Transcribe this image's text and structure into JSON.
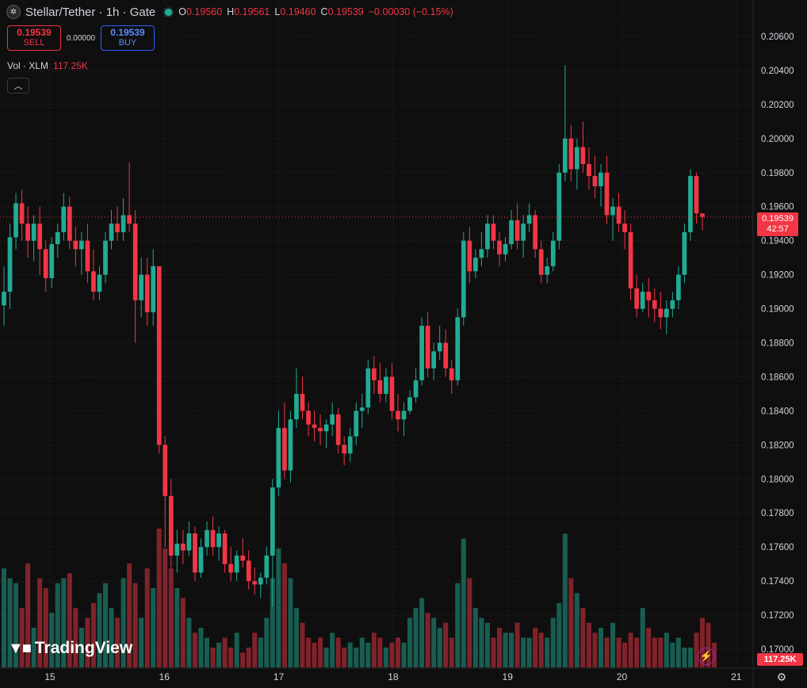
{
  "header": {
    "title": "Stellar/Tether · 1h · Gate",
    "ohlc": [
      {
        "k": "O",
        "v": "0.19560"
      },
      {
        "k": "H",
        "v": "0.19561"
      },
      {
        "k": "L",
        "v": "0.19460"
      },
      {
        "k": "C",
        "v": "0.19539"
      },
      {
        "k": "",
        "v": "−0.00030 (−0.15%)"
      }
    ]
  },
  "trade": {
    "sell_price": "0.19539",
    "sell_label": "SELL",
    "spread": "0.00000",
    "buy_price": "0.19539",
    "buy_label": "BUY"
  },
  "volume_legend": {
    "label": "Vol · XLM",
    "value": "117.25K"
  },
  "brand": "TradingView",
  "price_tag": {
    "price": "0.19539",
    "countdown": "42:57"
  },
  "volume_tag": "117.25K",
  "colors": {
    "up": "#22ab94",
    "down": "#f23645",
    "grid": "#232323",
    "axis_text": "#d1d4dc"
  },
  "icons": [
    "sym-icon",
    "collapse-icon",
    "lightning-icon",
    "settings-icon"
  ],
  "chart_data": {
    "type": "candlestick",
    "title": "Stellar/Tether · 1h · Gate",
    "x_ticks": [
      "15",
      "16",
      "17",
      "18",
      "19",
      "20",
      "21"
    ],
    "y_ticks": [
      "0.20600",
      "0.20400",
      "0.20200",
      "0.20000",
      "0.19800",
      "0.19600",
      "0.19400",
      "0.19200",
      "0.19000",
      "0.18800",
      "0.18600",
      "0.18400",
      "0.18200",
      "0.18000",
      "0.17800",
      "0.17600",
      "0.17400",
      "0.17200",
      "0.17000"
    ],
    "ylim": [
      0.1694,
      0.2066
    ],
    "xlim_days": [
      14.58,
      21.0
    ],
    "last_price": 0.19539,
    "grid": true,
    "ohlc_series": [
      [
        0.1902,
        0.1925,
        0.189,
        0.191
      ],
      [
        0.191,
        0.195,
        0.19,
        0.1942
      ],
      [
        0.1942,
        0.1968,
        0.1935,
        0.1962
      ],
      [
        0.1962,
        0.197,
        0.194,
        0.195
      ],
      [
        0.195,
        0.196,
        0.193,
        0.194
      ],
      [
        0.194,
        0.1955,
        0.1928,
        0.195
      ],
      [
        0.195,
        0.196,
        0.192,
        0.1935
      ],
      [
        0.1935,
        0.194,
        0.191,
        0.1918
      ],
      [
        0.1918,
        0.1942,
        0.1912,
        0.1938
      ],
      [
        0.1938,
        0.195,
        0.193,
        0.1945
      ],
      [
        0.1945,
        0.1968,
        0.194,
        0.196
      ],
      [
        0.196,
        0.1966,
        0.1935,
        0.194
      ],
      [
        0.194,
        0.1948,
        0.1925,
        0.1935
      ],
      [
        0.1935,
        0.1945,
        0.192,
        0.194
      ],
      [
        0.194,
        0.195,
        0.1915,
        0.1922
      ],
      [
        0.1922,
        0.1935,
        0.1905,
        0.191
      ],
      [
        0.191,
        0.1925,
        0.1905,
        0.192
      ],
      [
        0.192,
        0.1945,
        0.1915,
        0.194
      ],
      [
        0.194,
        0.1958,
        0.1935,
        0.195
      ],
      [
        0.195,
        0.196,
        0.194,
        0.1945
      ],
      [
        0.1945,
        0.1965,
        0.194,
        0.1955
      ],
      [
        0.1955,
        0.1986,
        0.1945,
        0.195
      ],
      [
        0.195,
        0.1958,
        0.188,
        0.1905
      ],
      [
        0.1905,
        0.193,
        0.1895,
        0.192
      ],
      [
        0.192,
        0.193,
        0.189,
        0.1898
      ],
      [
        0.1898,
        0.1935,
        0.189,
        0.1925
      ],
      [
        0.1925,
        0.1925,
        0.1815,
        0.182
      ],
      [
        0.182,
        0.1825,
        0.176,
        0.179
      ],
      [
        0.179,
        0.18,
        0.1748,
        0.1755
      ],
      [
        0.1755,
        0.177,
        0.1745,
        0.1762
      ],
      [
        0.1762,
        0.177,
        0.175,
        0.1758
      ],
      [
        0.1758,
        0.1775,
        0.1755,
        0.1768
      ],
      [
        0.1768,
        0.1772,
        0.174,
        0.1745
      ],
      [
        0.1745,
        0.1765,
        0.1742,
        0.176
      ],
      [
        0.176,
        0.1775,
        0.1755,
        0.177
      ],
      [
        0.177,
        0.1778,
        0.1755,
        0.176
      ],
      [
        0.176,
        0.1772,
        0.1752,
        0.1768
      ],
      [
        0.1768,
        0.177,
        0.1745,
        0.175
      ],
      [
        0.175,
        0.176,
        0.174,
        0.1745
      ],
      [
        0.1745,
        0.1758,
        0.174,
        0.1755
      ],
      [
        0.1755,
        0.1765,
        0.1748,
        0.1752
      ],
      [
        0.1752,
        0.1758,
        0.1735,
        0.174
      ],
      [
        0.174,
        0.1748,
        0.1732,
        0.1738
      ],
      [
        0.1738,
        0.1745,
        0.173,
        0.1742
      ],
      [
        0.1742,
        0.176,
        0.1738,
        0.1755
      ],
      [
        0.1755,
        0.18,
        0.1725,
        0.1795
      ],
      [
        0.1795,
        0.184,
        0.179,
        0.183
      ],
      [
        0.183,
        0.1845,
        0.18,
        0.1805
      ],
      [
        0.1805,
        0.184,
        0.1798,
        0.1835
      ],
      [
        0.1835,
        0.1865,
        0.183,
        0.185
      ],
      [
        0.185,
        0.186,
        0.1835,
        0.184
      ],
      [
        0.184,
        0.1845,
        0.1825,
        0.1832
      ],
      [
        0.1832,
        0.184,
        0.1822,
        0.183
      ],
      [
        0.183,
        0.1838,
        0.182,
        0.1828
      ],
      [
        0.1828,
        0.1835,
        0.1818,
        0.1832
      ],
      [
        0.1832,
        0.1845,
        0.1825,
        0.1838
      ],
      [
        0.1838,
        0.1842,
        0.1815,
        0.182
      ],
      [
        0.182,
        0.1825,
        0.1808,
        0.1815
      ],
      [
        0.1815,
        0.183,
        0.181,
        0.1825
      ],
      [
        0.1825,
        0.1845,
        0.182,
        0.184
      ],
      [
        0.184,
        0.185,
        0.183,
        0.1842
      ],
      [
        0.1842,
        0.187,
        0.1838,
        0.1865
      ],
      [
        0.1865,
        0.1872,
        0.185,
        0.1858
      ],
      [
        0.1858,
        0.1868,
        0.1845,
        0.185
      ],
      [
        0.185,
        0.1865,
        0.1845,
        0.186
      ],
      [
        0.186,
        0.1868,
        0.1835,
        0.184
      ],
      [
        0.184,
        0.185,
        0.1828,
        0.1835
      ],
      [
        0.1835,
        0.1845,
        0.1825,
        0.184
      ],
      [
        0.184,
        0.1852,
        0.1838,
        0.1848
      ],
      [
        0.1848,
        0.1865,
        0.1845,
        0.1858
      ],
      [
        0.1858,
        0.1895,
        0.1855,
        0.189
      ],
      [
        0.189,
        0.1898,
        0.186,
        0.1865
      ],
      [
        0.1865,
        0.188,
        0.1858,
        0.1875
      ],
      [
        0.1875,
        0.189,
        0.187,
        0.188
      ],
      [
        0.188,
        0.1888,
        0.186,
        0.1865
      ],
      [
        0.1865,
        0.187,
        0.185,
        0.1858
      ],
      [
        0.1858,
        0.19,
        0.1855,
        0.1895
      ],
      [
        0.1895,
        0.1945,
        0.189,
        0.194
      ],
      [
        0.194,
        0.1948,
        0.1915,
        0.1922
      ],
      [
        0.1922,
        0.1935,
        0.1918,
        0.193
      ],
      [
        0.193,
        0.1945,
        0.1925,
        0.1935
      ],
      [
        0.1935,
        0.1955,
        0.193,
        0.195
      ],
      [
        0.195,
        0.1955,
        0.1935,
        0.194
      ],
      [
        0.194,
        0.1945,
        0.1925,
        0.1932
      ],
      [
        0.1932,
        0.1942,
        0.1928,
        0.1938
      ],
      [
        0.1938,
        0.1958,
        0.1935,
        0.1952
      ],
      [
        0.1952,
        0.1962,
        0.1935,
        0.194
      ],
      [
        0.194,
        0.1955,
        0.193,
        0.195
      ],
      [
        0.195,
        0.1962,
        0.1945,
        0.1955
      ],
      [
        0.1955,
        0.1958,
        0.193,
        0.1935
      ],
      [
        0.1935,
        0.194,
        0.1915,
        0.192
      ],
      [
        0.192,
        0.193,
        0.1915,
        0.1925
      ],
      [
        0.1925,
        0.1945,
        0.1922,
        0.194
      ],
      [
        0.194,
        0.1985,
        0.1935,
        0.198
      ],
      [
        0.198,
        0.2043,
        0.1975,
        0.2
      ],
      [
        0.2,
        0.2008,
        0.1975,
        0.1982
      ],
      [
        0.1982,
        0.2,
        0.197,
        0.1995
      ],
      [
        0.1995,
        0.201,
        0.198,
        0.1985
      ],
      [
        0.1985,
        0.1995,
        0.197,
        0.1978
      ],
      [
        0.1978,
        0.199,
        0.1965,
        0.1972
      ],
      [
        0.1972,
        0.1985,
        0.196,
        0.198
      ],
      [
        0.198,
        0.199,
        0.195,
        0.1955
      ],
      [
        0.1955,
        0.1965,
        0.194,
        0.196
      ],
      [
        0.196,
        0.1968,
        0.1945,
        0.195
      ],
      [
        0.195,
        0.1958,
        0.1935,
        0.1945
      ],
      [
        0.1945,
        0.195,
        0.1905,
        0.1912
      ],
      [
        0.1912,
        0.192,
        0.1895,
        0.19
      ],
      [
        0.19,
        0.1915,
        0.1898,
        0.191
      ],
      [
        0.191,
        0.1918,
        0.1895,
        0.1905
      ],
      [
        0.1905,
        0.1912,
        0.1892,
        0.19
      ],
      [
        0.19,
        0.191,
        0.1888,
        0.1895
      ],
      [
        0.1895,
        0.1905,
        0.1885,
        0.19
      ],
      [
        0.19,
        0.191,
        0.1895,
        0.1905
      ],
      [
        0.1905,
        0.1925,
        0.19,
        0.192
      ],
      [
        0.192,
        0.195,
        0.1915,
        0.1945
      ],
      [
        0.1945,
        0.1982,
        0.194,
        0.1978
      ],
      [
        0.1978,
        0.198,
        0.195,
        0.1956
      ],
      [
        0.1956,
        0.1956,
        0.1946,
        0.1954
      ]
    ],
    "volume_series": [
      1,
      0.9,
      0.85,
      0.6,
      1.05,
      0.4,
      0.9,
      0.8,
      0.55,
      0.85,
      0.9,
      0.95,
      0.6,
      0.4,
      0.5,
      0.65,
      0.75,
      0.85,
      0.6,
      0.5,
      0.9,
      1.05,
      0.85,
      0.5,
      1.0,
      0.8,
      1.4,
      1.2,
      1.0,
      0.8,
      0.7,
      0.5,
      0.35,
      0.4,
      0.3,
      0.2,
      0.25,
      0.3,
      0.2,
      0.35,
      0.15,
      0.2,
      0.35,
      0.3,
      0.5,
      0.9,
      1.2,
      1.05,
      0.9,
      0.6,
      0.45,
      0.3,
      0.25,
      0.3,
      0.2,
      0.35,
      0.3,
      0.2,
      0.25,
      0.2,
      0.3,
      0.25,
      0.35,
      0.3,
      0.2,
      0.25,
      0.3,
      0.25,
      0.5,
      0.6,
      0.7,
      0.55,
      0.5,
      0.4,
      0.45,
      0.3,
      0.85,
      1.3,
      0.9,
      0.6,
      0.5,
      0.45,
      0.3,
      0.4,
      0.35,
      0.35,
      0.45,
      0.3,
      0.3,
      0.4,
      0.35,
      0.3,
      0.5,
      0.65,
      1.35,
      0.9,
      0.75,
      0.6,
      0.45,
      0.35,
      0.4,
      0.3,
      0.45,
      0.3,
      0.25,
      0.35,
      0.3,
      0.6,
      0.4,
      0.3,
      0.3,
      0.35,
      0.25,
      0.3,
      0.2,
      0.2,
      0.35,
      0.5,
      0.45,
      0.25
    ],
    "volume_max_value": "117.25K"
  }
}
